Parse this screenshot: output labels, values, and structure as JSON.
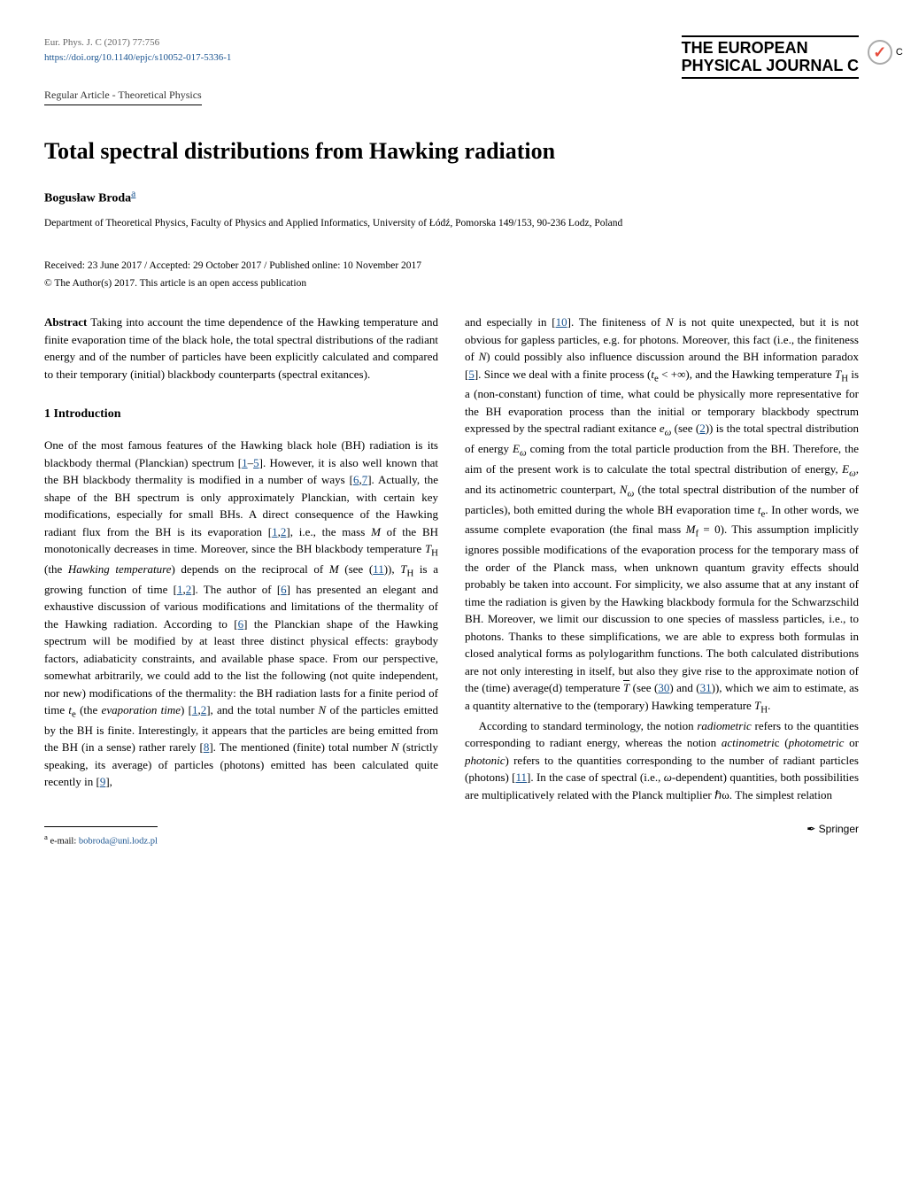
{
  "header": {
    "citation": "Eur. Phys. J. C (2017) 77:756",
    "doi": "https://doi.org/10.1140/epjc/s10052-017-5336-1",
    "journal_line1": "THE EUROPEAN",
    "journal_line2": "PHYSICAL JOURNAL C",
    "crossmark_label": "CrossMark"
  },
  "article_type": "Regular Article - Theoretical Physics",
  "title": "Total spectral distributions from Hawking radiation",
  "author": {
    "name": "Bogusław Broda",
    "sup": "a"
  },
  "affiliation": "Department of Theoretical Physics, Faculty of Physics and Applied Informatics, University of Łódź, Pomorska 149/153, 90-236 Lodz, Poland",
  "dates": "Received: 23 June 2017 / Accepted: 29 October 2017 / Published online: 10 November 2017",
  "copyright": "© The Author(s) 2017. This article is an open access publication",
  "abstract": {
    "label": "Abstract",
    "text": "Taking into account the time dependence of the Hawking temperature and finite evaporation time of the black hole, the total spectral distributions of the radiant energy and of the number of particles have been explicitly calculated and compared to their temporary (initial) blackbody counterparts (spectral exitances)."
  },
  "section1": {
    "heading": "1 Introduction",
    "para1_a": "One of the most famous features of the Hawking black hole (BH) radiation is its blackbody thermal (Planckian) spectrum [",
    "ref1": "1",
    "dash1": "–",
    "ref5": "5",
    "para1_b": "]. However, it is also well known that the BH blackbody thermality is modified in a number of ways [",
    "ref6a": "6",
    "comma1": ",",
    "ref7a": "7",
    "para1_c": "]. Actually, the shape of the BH spectrum is only approximately Planckian, with certain key modifications, especially for small BHs. A direct consequence of the Hawking radiant flux from the BH is its evaporation [",
    "ref1b": "1",
    "comma2": ",",
    "ref2a": "2",
    "para1_d": "], i.e., the mass ",
    "M1": "M",
    "para1_e": " of the BH monotonically decreases in time. Moreover, since the BH blackbody temperature ",
    "TH1": "T",
    "Hsub1": "H",
    "para1_f": " (the ",
    "hawktemp": "Hawking temperature",
    "para1_g": ") depends on the reciprocal of ",
    "M2": "M",
    "para1_h": " (see (",
    "eq11": "11",
    "para1_i": ")), ",
    "TH2": "T",
    "Hsub2": "H",
    "para1_j": " is a growing function of time [",
    "ref1c": "1",
    "comma3": ",",
    "ref2b": "2",
    "para1_k": "]. The author of [",
    "ref6b": "6",
    "para1_l": "] has presented an elegant and exhaustive discussion of various modifications and limitations of the thermality of the Hawking radiation. According to [",
    "ref6c": "6",
    "para1_m": "] the Planckian shape of the Hawking spectrum will be modified by at least three distinct physical effects: graybody factors, adiabaticity constraints, and available phase space. From our perspective, somewhat arbitrarily, we could add to the list the following (not quite independent, nor new) modifications of the thermality: the BH radiation lasts for a finite period of time ",
    "te1": "t",
    "esub1": "e",
    "para1_n": " (the ",
    "evaptime": "evaporation time",
    "para1_o": ") [",
    "ref1d": "1",
    "comma4": ",",
    "ref2c": "2",
    "para1_p": "], and the total number ",
    "N1": "N",
    "para1_q": " of the particles emitted by the BH is finite. Interestingly, it appears that the particles are being emitted from the BH (in a sense) rather rarely [",
    "ref8a": "8",
    "para1_r": "]. The mentioned (finite) total number ",
    "N2": "N",
    "para1_s": " (strictly speaking, its average) of particles (photons) emitted has been calculated quite recently in [",
    "ref9a": "9",
    "para1_t": "],"
  },
  "col2": {
    "para1_a": "and especially in [",
    "ref10": "10",
    "para1_b": "]. The finiteness of ",
    "N3": "N",
    "para1_c": " is not quite unexpected, but it is not obvious for gapless particles, e.g. for photons. Moreover, this fact (i.e., the finiteness of ",
    "N4": "N",
    "para1_d": ") could possibly also influence discussion around the BH information paradox [",
    "ref5b": "5",
    "para1_e": "]. Since we deal with a finite process (",
    "te2": "t",
    "esub2": "e",
    "ineq": " < +∞",
    "para1_f": "), and the Hawking temperature ",
    "TH3": "T",
    "Hsub3": "H",
    "para1_g": " is a (non-constant) function of time, what could be physically more representative for the BH evaporation process than the initial or temporary blackbody spectrum expressed by the spectral radiant exitance ",
    "ew": "e",
    "wsub1": "ω",
    "para1_h": " (see (",
    "eq2": "2",
    "para1_i": ")) is the total spectral distribution of energy ",
    "Ew": "E",
    "wsub2": "ω",
    "para1_j": " coming from the total particle production from the BH. Therefore, the aim of the present work is to calculate the total spectral distribution of energy, ",
    "Ew2": "E",
    "wsub3": "ω",
    "para1_k": ", and its actinometric counterpart, ",
    "Nw": "N",
    "wsub4": "ω",
    "para1_l": " (the total spectral distribution of the number of particles), both emitted during the whole BH evaporation time ",
    "te3": "t",
    "esub3": "e",
    "para1_m": ". In other words, we assume complete evaporation (the final mass ",
    "Mf": "M",
    "fsub": "f",
    "para1_n": " = 0). This assumption implicitly ignores possible modifications of the evaporation process for the temporary mass of the order of the Planck mass, when unknown quantum gravity effects should probably be taken into account. For simplicity, we also assume that at any instant of time the radiation is given by the Hawking blackbody formula for the Schwarzschild BH. Moreover, we limit our discussion to one species of massless particles, i.e., to photons. Thanks to these simplifications, we are able to express both formulas in closed analytical forms as polylogarithm functions. The both calculated distributions are not only interesting in itself, but also they give rise to the approximate notion of the (time) average(d) temperature ",
    "Tbar": "T",
    "para1_o": " (see (",
    "eq30": "30",
    "para1_p": ") and (",
    "eq31": "31",
    "para1_q": ")), which we aim to estimate, as a quantity alternative to the (temporary) Hawking temperature ",
    "TH4": "T",
    "Hsub4": "H",
    "para1_r": ".",
    "para2_a": "According to standard terminology, the notion ",
    "radiometric": "radiometric",
    "para2_b": " refers to the quantities corresponding to radiant energy, whereas the notion ",
    "actinometric": "actinometri",
    "para2_c": "c (",
    "photometric": "photometric",
    "para2_d": " or ",
    "photonic": "photonic",
    "para2_e": ") refers to the quantities corresponding to the number of radiant particles (photons) [",
    "ref11": "11",
    "para2_f": "]. In the case of spectral (i.e., ",
    "omega": "ω",
    "para2_g": "-dependent) quantities, both possibilities are multiplicatively related with the Planck multiplier ",
    "hbar": "ℏω",
    "para2_h": ". The simplest relation"
  },
  "footnote": {
    "sup": "a",
    "label": " e-mail: ",
    "email": "bobroda@uni.lodz.pl"
  },
  "springer": "Springer"
}
